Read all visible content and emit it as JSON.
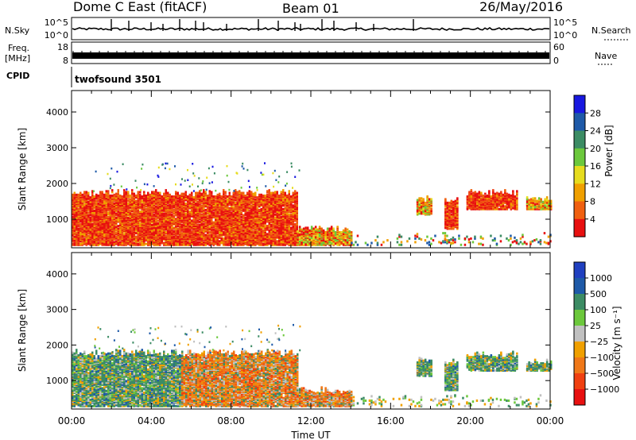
{
  "header": {
    "title": "Dome C East (fitACF)",
    "beam": "Beam 01",
    "date": "26/May/2016"
  },
  "strips": {
    "nsky_label": "N.Sky",
    "nsky_ticks": [
      "10^5",
      "10^0"
    ],
    "nsearch_label": "N.Search",
    "nsearch_ticks": [
      "10^5",
      "10^0"
    ],
    "freq_label_1": "Freq.",
    "freq_label_2": "[MHz]",
    "freq_ticks": [
      "18",
      "8"
    ],
    "nave_label": "Nave",
    "nave_ticks": [
      "60",
      "0"
    ],
    "cpid_label": "CPID",
    "cpid_value": "twofsound 3501"
  },
  "chart_data": [
    {
      "type": "heatmap",
      "name": "power",
      "ylabel": "Slant Range [km]",
      "y_ticks": [
        "1000",
        "2000",
        "3000",
        "4000"
      ],
      "ylim": [
        200,
        4600
      ],
      "colorbar_label": "Power [dB]",
      "colorbar_ticks": [
        "4",
        "8",
        "12",
        "16",
        "20",
        "24",
        "28"
      ],
      "colorbar_colors": [
        "#1818e0",
        "#1e5aa8",
        "#3c8c64",
        "#6cc83c",
        "#e6dc1e",
        "#f0a000",
        "#f06010",
        "#e81010"
      ],
      "regions": [
        {
          "t0": 0.0,
          "t1": 11.3,
          "r0": 250,
          "r1": 1700,
          "mix": "hot"
        },
        {
          "t0": 11.3,
          "t1": 14.0,
          "r0": 250,
          "r1": 700,
          "mix": "warm"
        },
        {
          "t0": 17.3,
          "t1": 18.0,
          "r0": 1100,
          "r1": 1550,
          "mix": "warm"
        },
        {
          "t0": 18.7,
          "t1": 19.3,
          "r0": 700,
          "r1": 1500,
          "mix": "hot"
        },
        {
          "t0": 19.8,
          "t1": 22.3,
          "r0": 1250,
          "r1": 1700,
          "mix": "hot"
        },
        {
          "t0": 22.8,
          "t1": 24.0,
          "r0": 1250,
          "r1": 1500,
          "mix": "warm"
        },
        {
          "t0": 14.0,
          "t1": 24.0,
          "r0": 250,
          "r1": 500,
          "mix": "sparse"
        }
      ]
    },
    {
      "type": "heatmap",
      "name": "velocity",
      "ylabel": "Slant Range [km]",
      "xlabel": "Time UT",
      "x_ticks": [
        "00:00",
        "04:00",
        "08:00",
        "12:00",
        "16:00",
        "20:00",
        "00:00"
      ],
      "xlim": [
        0,
        24
      ],
      "y_ticks": [
        "1000",
        "2000",
        "3000",
        "4000"
      ],
      "ylim": [
        200,
        4600
      ],
      "colorbar_label": "Velocity [m s⁻¹]",
      "colorbar_ticks": [
        "1000",
        "500",
        "100",
        "25",
        "−25",
        "−100",
        "−500",
        "−1000"
      ],
      "colorbar_colors": [
        "#2040c0",
        "#1e5aa8",
        "#3c8c64",
        "#6cc83c",
        "#c0c0c0",
        "#f0a000",
        "#f07818",
        "#f04010",
        "#e81010"
      ],
      "regions": [
        {
          "t0": 0.0,
          "t1": 5.5,
          "r0": 250,
          "r1": 1750,
          "mix": "green"
        },
        {
          "t0": 5.5,
          "t1": 11.3,
          "r0": 250,
          "r1": 1750,
          "mix": "orange"
        },
        {
          "t0": 11.3,
          "t1": 14.0,
          "r0": 250,
          "r1": 700,
          "mix": "orange"
        },
        {
          "t0": 17.3,
          "t1": 18.0,
          "r0": 1100,
          "r1": 1550,
          "mix": "green"
        },
        {
          "t0": 18.7,
          "t1": 19.3,
          "r0": 700,
          "r1": 1500,
          "mix": "green"
        },
        {
          "t0": 19.8,
          "t1": 22.3,
          "r0": 1250,
          "r1": 1700,
          "mix": "green"
        },
        {
          "t0": 22.8,
          "t1": 24.0,
          "r0": 1250,
          "r1": 1500,
          "mix": "green"
        },
        {
          "t0": 14.0,
          "t1": 24.0,
          "r0": 250,
          "r1": 500,
          "mix": "sparse"
        }
      ]
    }
  ]
}
